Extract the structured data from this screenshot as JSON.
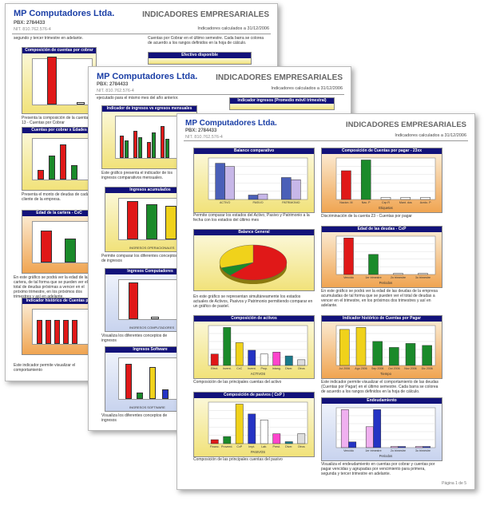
{
  "pages": {
    "back": {
      "company": "MP Computadores Ltda.",
      "pbx": "PBX: 2784433",
      "nit": "NIT. 810.762.576-4",
      "title": "INDICADORES EMPRESARIALES",
      "calc": "Indicadores calculados a 31/12/2006",
      "intro_left": "segundo y tercer trimestre en adelante.",
      "intro_right": "Cuentas por Cobrar en el último semestre. Cada barra se colorea de acuerdo a los rangos definidos en la hoja de cálculo.",
      "panels": {
        "comp_cobrar": "Composición de cuentas por cobrar",
        "efectivo": "Efectivo disponible",
        "cuentas_edades": "Cuentas por cobrar x Edades",
        "edad_cartera": "Edad de la cartera - CxC",
        "hist_cuentas": "Indicador histórico de Cuentas por Cobrar"
      },
      "texts": {
        "t1": "Presenta la composición de la cuenta 13 - Cuentas por Cobrar",
        "t2": "Presenta el monto de deudas de cada cliente de la empresa.",
        "t3": "En este gráfico se podrá ver la edad de la cartera, de tal forma que se pueden ver el total de deudas próximas a vencer en el próximo trimestre, en los próximos dos trimestres y así en adelante.",
        "t4": "Este indicador permite visualizar el comportamiento"
      }
    },
    "middle": {
      "company": "MP Computadores Ltda.",
      "pbx": "PBX: 2784433",
      "nit": "NIT. 810.762.576-4",
      "title": "INDICADORES EMPRESARIALES",
      "calc": "Indicadores calculados a 31/12/2006",
      "intro": "ejecutado para el mismo mes del año anterior.",
      "panels": {
        "ing_gastos": "Indicador de ingresos vs egresos mensuales",
        "ing_promedio": "Indicador ingresos (Promedio móvil trimestral)",
        "ing_acumulados": "Ingresos acumulados",
        "ing_computadores": "Ingresos Computadores",
        "ing_software": "Ingresos Software"
      },
      "texts": {
        "t1": "Este gráfico presenta el indicador de los ingresos comparativos mensuales.",
        "t2": "Permite comparar los diferentes conceptos de ingresos",
        "t3": "Visualiza los diferentes conceptos de ingresos",
        "t4": "Visualiza los diferentes conceptos de ingresos"
      },
      "axis": {
        "ing_acumulados": "INGRESOS OPERACIONALES",
        "ing_computadores": "INGRESOS COMPUTADORES",
        "ing_software": "INGRESOS SOFTWARE",
        "tiempo": "Tiempo"
      }
    },
    "front": {
      "company": "MP Computadores Ltda.",
      "pbx": "PBX: 2784433",
      "nit": "NIT. 810.762.576-4",
      "title": "INDICADORES EMPRESARIALES",
      "calc": "Indicadores calculados a 31/12/2006",
      "footer": "Página 1 de 5",
      "panels": {
        "balance_comp": "Balance comparativo",
        "comp_pagar": "Composición de Cuentas por pagar - 23xx",
        "balance_general": "Balance General",
        "edad_deudas": "Edad de las deudas - CxP",
        "comp_activos": "Composición de activos",
        "hist_pagar": "Indicador histórico de Cuentas por Pagar",
        "comp_pasivos": "Composición de pasivos ( CxP )",
        "endeudamiento": "Endeudamiento"
      },
      "texts": {
        "balance_comp": "Permite comparar los estados del Activo, Pasivo y Patrimonio a la fecha con los estados del último mes",
        "comp_pagar": "Discriminación de la cuenta 23 - Cuentas por pagar",
        "balance_general": "En este gráfico se representan simultáneamente los estados actuales de Activos, Pasivos y Patrimonio permitiendo comparar en un gráfico de pastel.",
        "edad_deudas": "En este gráfico se podrá ver la edad de las deudas de la empresa acumuladas de tal forma que se pueden ver el total de deudas a vencer en el trimestre, en los próximos dos trimestres y así en adelante.",
        "comp_activos": "Composición de las principales cuentas del activo",
        "hist_pagar": "Este indicador permite visualizar el comportamiento de las deudas (Cuentas por Pagar) en el último semestre. Cada barra se colorea de acuerdo a los rangos definidos en la hoja de cálculo.",
        "comp_pasivos": "Composición de las principales cuentas del pasivo",
        "endeudamiento": "Visualiza el endeudamiento en cuentas por cobrar y cuentas por pagar vencidas y agrupadas por vencimiento para primera, segunda y tercer trimestre en adelante."
      },
      "axis": {
        "balance_cats": [
          "ACTIVO",
          "PASIVO",
          "PATRIMONIO"
        ],
        "pagar_cats": [
          "Nacion. M",
          "Nac. P",
          "Cxp R",
          "Mant. dos",
          "Acrdo. P"
        ],
        "pagar_xlabel": "Etiquetas",
        "edad_cats": [
          "Vencido",
          "1er trimestre",
          "2o trimestre",
          "3o trimestre"
        ],
        "edad_xlabel": "Periodos",
        "activos_cats": [
          "Efect.",
          "Invent.",
          "CxC",
          "Invent.",
          "Prop.",
          "Intang.",
          "Diver.",
          "Otros"
        ],
        "activos_xlabel": "ACTIVOS",
        "hist_cats": [
          "Jul 2006",
          "Ago 2006",
          "Sep 2006",
          "Oct 2006",
          "Nov 2006",
          "Dic 2006"
        ],
        "hist_xlabel": "Tiempo",
        "pasivos_cats": [
          "Financ.",
          "Proveed.",
          "CxP",
          "Impt.",
          "Lab.",
          "Prest.",
          "Diver.",
          "Otros"
        ],
        "pasivos_xlabel": "PASIVOS",
        "endeud_cats": [
          "Vencido",
          "1er trimestre",
          "2o trimestre",
          "3o trimestre"
        ],
        "endeud_xlabel": "Periodos"
      }
    }
  },
  "chart_data": [
    {
      "type": "bar",
      "title": "Balance comparativo",
      "categories": [
        "ACTIVO",
        "PASIVO",
        "PATRIMONIO"
      ],
      "series": [
        {
          "values": [
            165000000,
            20000000,
            100000000
          ]
        },
        {
          "values": [
            150000000,
            25000000,
            90000000
          ]
        }
      ],
      "ylim": [
        0,
        180000000
      ]
    },
    {
      "type": "bar",
      "title": "Composición de Cuentas por pagar - 23xx",
      "categories": [
        "Nacion. M",
        "Nac. P",
        "Cxp R",
        "Mant. dos",
        "Acrdo. P"
      ],
      "values": [
        40,
        55,
        3,
        3,
        3
      ],
      "colors": [
        "#e01818",
        "#1a8a2a",
        "#ffffff",
        "#ffffff",
        "#ffffff"
      ]
    },
    {
      "type": "pie",
      "title": "Balance General",
      "categories": [
        "Activo",
        "Pasivo",
        "Patrimonio"
      ],
      "values": [
        62,
        8,
        30
      ],
      "colors": [
        "#e01818",
        "#1a8a2a",
        "#f0d21b"
      ]
    },
    {
      "type": "bar",
      "title": "Edad de las deudas - CxP",
      "categories": [
        "Vencido",
        "1er trimestre",
        "2o trimestre",
        "3o trimestre"
      ],
      "values": [
        100,
        55,
        3,
        3
      ],
      "colors": [
        "#e01818",
        "#1a8a2a",
        "#ffffff",
        "#ffffff"
      ]
    },
    {
      "type": "bar",
      "title": "Composición de activos",
      "categories": [
        "Efect.",
        "Invent.",
        "CxC",
        "Invent.",
        "Prop.",
        "Intang.",
        "Diver.",
        "Otros"
      ],
      "values": [
        30,
        100,
        60,
        40,
        30,
        35,
        25,
        15
      ],
      "colors": [
        "#e01818",
        "#1a8a2a",
        "#f0d21b",
        "#2433c4",
        "#ffffff",
        "#ff44cc",
        "#1a7a8a",
        "#dddddd"
      ]
    },
    {
      "type": "bar",
      "title": "Indicador histórico de Cuentas por Pagar",
      "categories": [
        "Jul 2006",
        "Ago 2006",
        "Sep 2006",
        "Oct 2006",
        "Nov 2006",
        "Dic 2006"
      ],
      "values": [
        90,
        95,
        60,
        45,
        55,
        50
      ],
      "colors": [
        "#f0d21b",
        "#f0d21b",
        "#1a8a2a",
        "#1a8a2a",
        "#1a8a2a",
        "#1a8a2a"
      ]
    },
    {
      "type": "bar",
      "title": "Composición de pasivos ( CxP )",
      "categories": [
        "Financ.",
        "Proveed.",
        "CxP",
        "Impt.",
        "Lab.",
        "Prest.",
        "Diver.",
        "Otros"
      ],
      "values": [
        10,
        18,
        100,
        75,
        60,
        25,
        5,
        25
      ],
      "colors": [
        "#e01818",
        "#1a8a2a",
        "#f0d21b",
        "#2433c4",
        "#ffffff",
        "#ff44cc",
        "#1a7a8a",
        "#dddddd"
      ]
    },
    {
      "type": "bar",
      "title": "Endeudamiento",
      "categories": [
        "Vencido",
        "1er trimestre",
        "2o trimestre",
        "3o trimestre"
      ],
      "series": [
        {
          "values": [
            100,
            55,
            3,
            3
          ]
        },
        {
          "values": [
            15,
            100,
            3,
            3
          ]
        }
      ]
    }
  ]
}
